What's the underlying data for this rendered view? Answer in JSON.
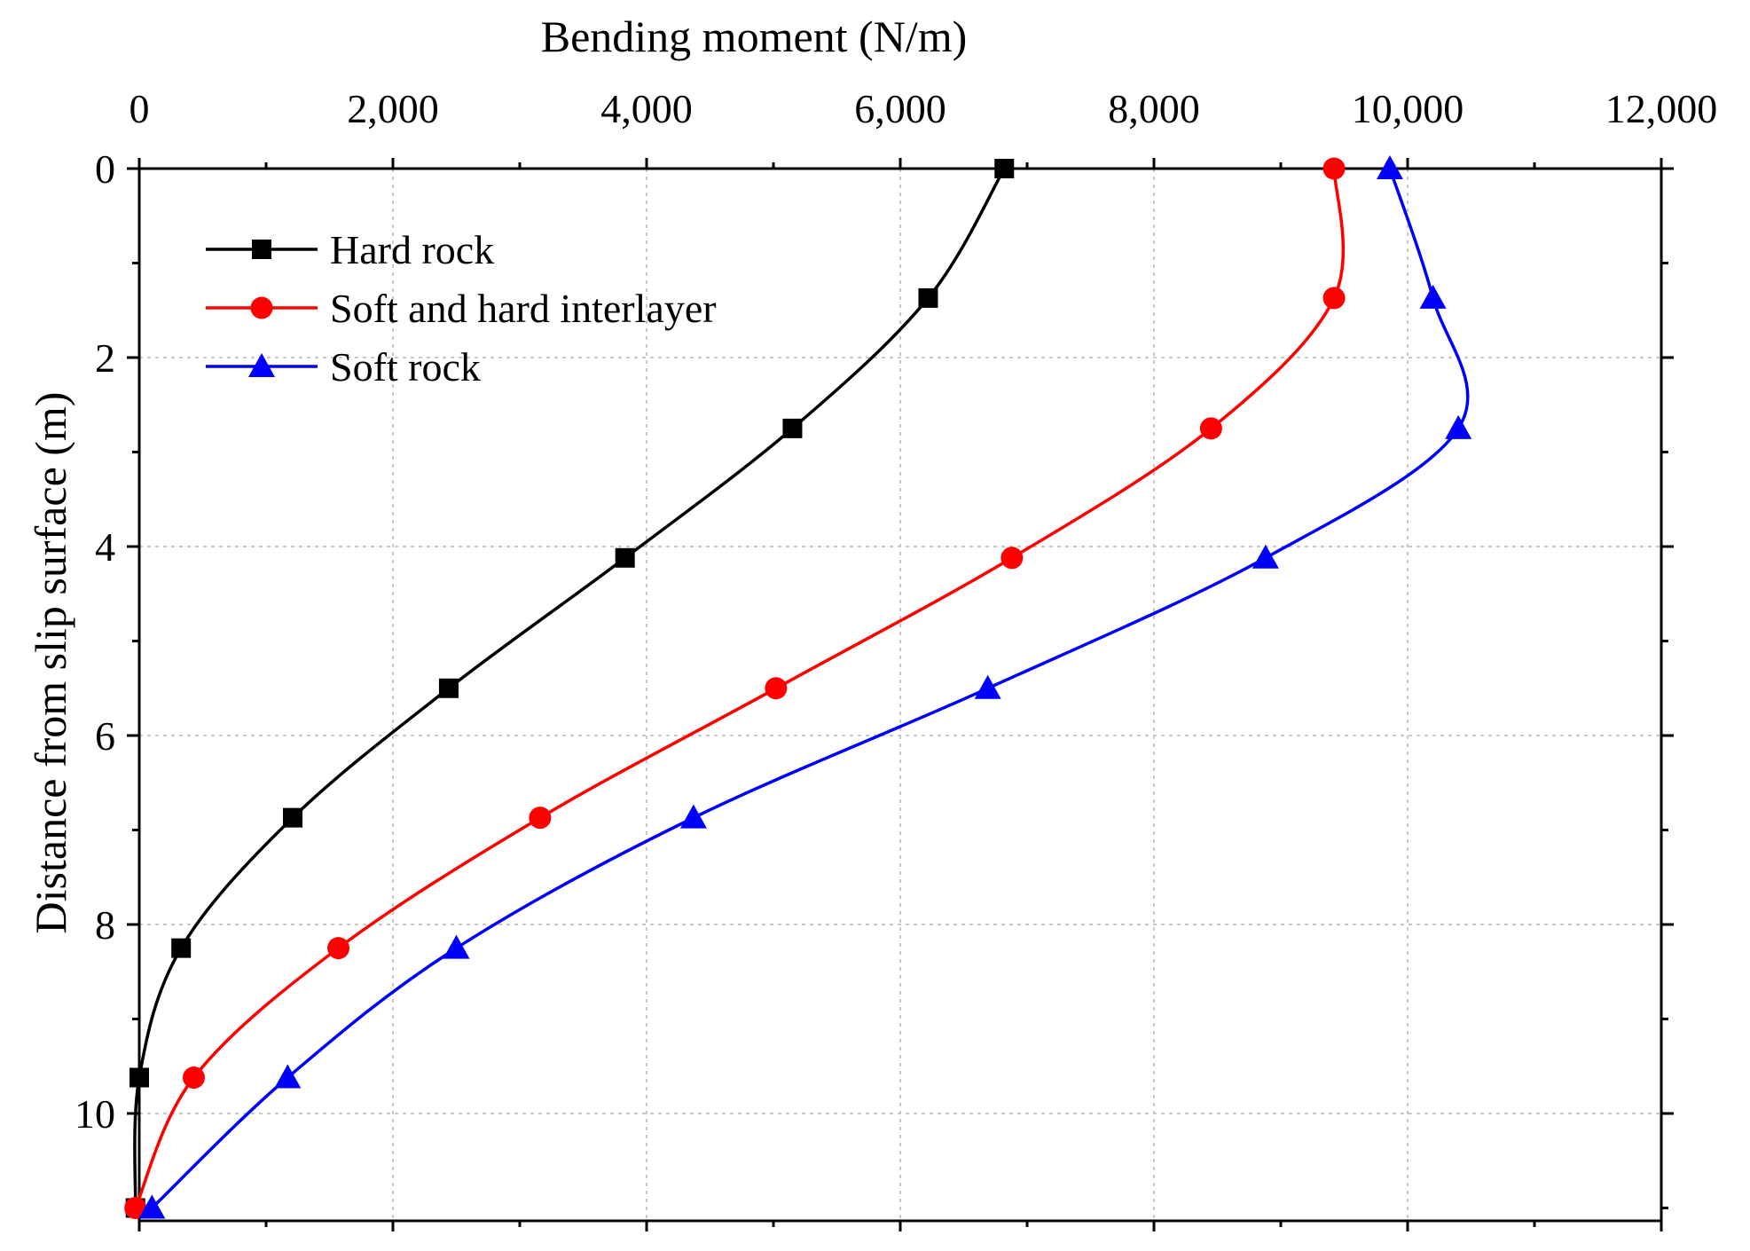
{
  "chart_data": {
    "type": "line",
    "xlabel": "Bending moment (N/m)",
    "ylabel": "Distance from slip surface (m)",
    "xlim": [
      0,
      12000
    ],
    "ylim": [
      0,
      11
    ],
    "x_axis_position": "top",
    "y_axis_inverted": true,
    "x_ticks": [
      0,
      2000,
      4000,
      6000,
      8000,
      10000,
      12000
    ],
    "x_tick_labels": [
      "0",
      "2,000",
      "4,000",
      "6,000",
      "8,000",
      "10,000",
      "12,000"
    ],
    "y_ticks": [
      0,
      2,
      4,
      6,
      8,
      10
    ],
    "y_tick_labels": [
      "0",
      "2",
      "4",
      "6",
      "8",
      "10"
    ],
    "grid": true,
    "legend_position": "top-left",
    "series": [
      {
        "name": "Hard rock",
        "color": "#000000",
        "marker": "square",
        "points": [
          {
            "x": 6820,
            "y": 0
          },
          {
            "x": 6220,
            "y": 1.37
          },
          {
            "x": 5150,
            "y": 2.75
          },
          {
            "x": 3830,
            "y": 4.12
          },
          {
            "x": 2440,
            "y": 5.5
          },
          {
            "x": 1210,
            "y": 6.87
          },
          {
            "x": 330,
            "y": 8.25
          },
          {
            "x": 0,
            "y": 9.62
          },
          {
            "x": -30,
            "y": 11
          }
        ]
      },
      {
        "name": "Soft and hard interlayer",
        "color": "#ff0000",
        "marker": "circle",
        "points": [
          {
            "x": 9420,
            "y": 0
          },
          {
            "x": 9420,
            "y": 1.37
          },
          {
            "x": 8450,
            "y": 2.75
          },
          {
            "x": 6880,
            "y": 4.12
          },
          {
            "x": 5020,
            "y": 5.5
          },
          {
            "x": 3160,
            "y": 6.87
          },
          {
            "x": 1570,
            "y": 8.25
          },
          {
            "x": 430,
            "y": 9.62
          },
          {
            "x": -30,
            "y": 11
          }
        ]
      },
      {
        "name": "Soft rock",
        "color": "#0000ff",
        "marker": "triangle",
        "points": [
          {
            "x": 9860,
            "y": 0
          },
          {
            "x": 10200,
            "y": 1.37
          },
          {
            "x": 10400,
            "y": 2.75
          },
          {
            "x": 8880,
            "y": 4.12
          },
          {
            "x": 6690,
            "y": 5.5
          },
          {
            "x": 4370,
            "y": 6.87
          },
          {
            "x": 2500,
            "y": 8.25
          },
          {
            "x": 1170,
            "y": 9.62
          },
          {
            "x": 100,
            "y": 11
          }
        ]
      }
    ]
  }
}
